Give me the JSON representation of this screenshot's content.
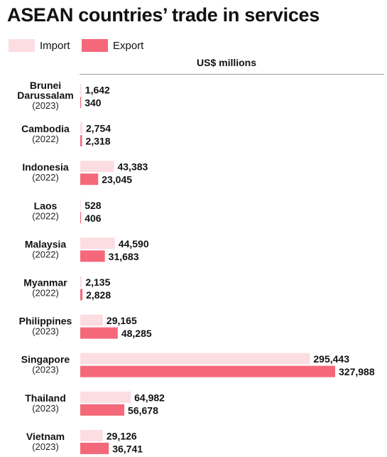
{
  "chart_data": {
    "type": "bar",
    "orientation": "horizontal",
    "title": "ASEAN countries’ trade in services",
    "unit_label": "US$ millions",
    "categories": [
      {
        "name_lines": [
          "Brunei",
          "Darussalam"
        ],
        "year": "(2023)"
      },
      {
        "name_lines": [
          "Cambodia"
        ],
        "year": "(2022)"
      },
      {
        "name_lines": [
          "Indonesia"
        ],
        "year": "(2022)"
      },
      {
        "name_lines": [
          "Laos"
        ],
        "year": "(2022)"
      },
      {
        "name_lines": [
          "Malaysia"
        ],
        "year": "(2022)"
      },
      {
        "name_lines": [
          "Myanmar"
        ],
        "year": "(2022)"
      },
      {
        "name_lines": [
          "Philippines"
        ],
        "year": "(2023)"
      },
      {
        "name_lines": [
          "Singapore"
        ],
        "year": "(2023)"
      },
      {
        "name_lines": [
          "Thailand"
        ],
        "year": "(2023)"
      },
      {
        "name_lines": [
          "Vietnam"
        ],
        "year": "(2023)"
      }
    ],
    "series": [
      {
        "name": "Import",
        "color": "#fcdde2",
        "values": [
          1642,
          2754,
          43383,
          528,
          44590,
          2135,
          29165,
          295443,
          64982,
          29126
        ],
        "labels": [
          "1,642",
          "2,754",
          "43,383",
          "528",
          "44,590",
          "2,135",
          "29,165",
          "295,443",
          "64,982",
          "29,126"
        ]
      },
      {
        "name": "Export",
        "color": "#f4687a",
        "values": [
          340,
          2318,
          23045,
          406,
          31683,
          2828,
          48285,
          327988,
          56678,
          36741
        ],
        "labels": [
          "340",
          "2,318",
          "23,045",
          "406",
          "31,683",
          "2,828",
          "48,285",
          "327,988",
          "56,678",
          "36,741"
        ]
      }
    ],
    "xlim": [
      0,
      327988
    ],
    "legend_position": "top-left",
    "grid": false
  }
}
